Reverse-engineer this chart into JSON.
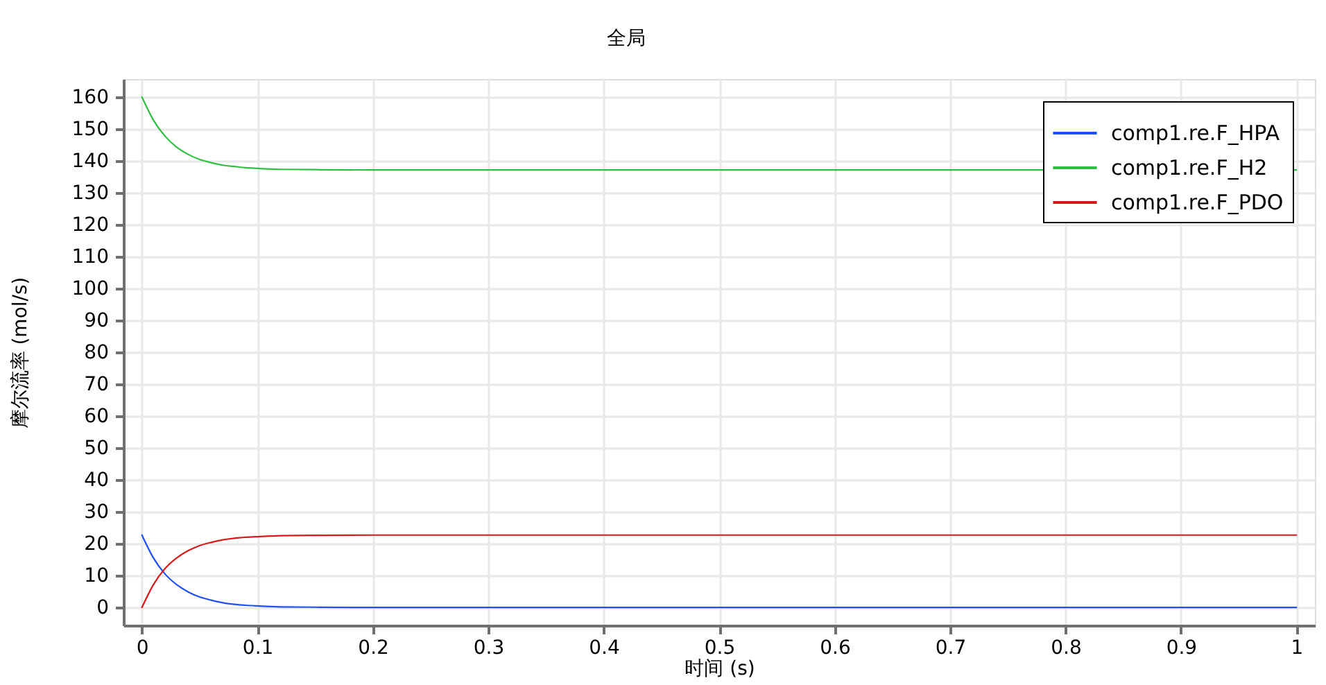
{
  "chart_data": {
    "type": "line",
    "title": "全局",
    "xlabel": "时间 (s)",
    "ylabel": "摩尔流率 (mol/s)",
    "x": [
      0,
      0.01,
      0.02,
      0.03,
      0.04,
      0.05,
      0.06,
      0.07,
      0.08,
      0.09,
      0.1,
      0.12,
      0.15,
      0.2,
      0.3,
      0.4,
      0.5,
      0.6,
      0.7,
      0.8,
      0.9,
      1.0
    ],
    "series": [
      {
        "name": "comp1.re.F_HPA",
        "color": "#1f4fff",
        "values": [
          22.7,
          15.5,
          10.5,
          7.2,
          4.9,
          3.3,
          2.3,
          1.5,
          1.0,
          0.7,
          0.5,
          0.2,
          0.1,
          0,
          0,
          0,
          0,
          0,
          0,
          0,
          0,
          0
        ]
      },
      {
        "name": "comp1.re.F_H2",
        "color": "#2fbf3f",
        "x": [
          0,
          0.01,
          0.02,
          0.03,
          0.04,
          0.05,
          0.06,
          0.07,
          0.08,
          0.09,
          0.1,
          0.12,
          0.15,
          0.2,
          0.3,
          0.4,
          0.5,
          0.6,
          0.7,
          1.0
        ],
        "values": [
          160,
          152.7,
          147.7,
          144.3,
          142.0,
          140.4,
          139.4,
          138.6,
          138.2,
          137.8,
          137.6,
          137.3,
          137.2,
          137.1,
          137.1,
          137.1,
          137.1,
          137.1,
          137.1,
          137.1
        ]
      },
      {
        "name": "comp1.re.F_PDO",
        "color": "#d61a1a",
        "values": [
          0,
          7.2,
          12.2,
          15.5,
          17.8,
          19.4,
          20.4,
          21.2,
          21.7,
          22.0,
          22.2,
          22.5,
          22.6,
          22.7,
          22.7,
          22.7,
          22.7,
          22.7,
          22.7,
          22.7,
          22.7,
          22.7
        ]
      }
    ],
    "xlim": [
      -0.016,
      1.016
    ],
    "ylim": [
      -5.6,
      165.6
    ],
    "xticks": [
      0,
      0.1,
      0.2,
      0.3,
      0.4,
      0.5,
      0.6,
      0.7,
      0.8,
      0.9,
      1
    ],
    "yticks": [
      0,
      10,
      20,
      30,
      40,
      50,
      60,
      70,
      80,
      90,
      100,
      110,
      120,
      130,
      140,
      150,
      160
    ],
    "grid": true,
    "legend": "top right",
    "line_style": "solid"
  }
}
